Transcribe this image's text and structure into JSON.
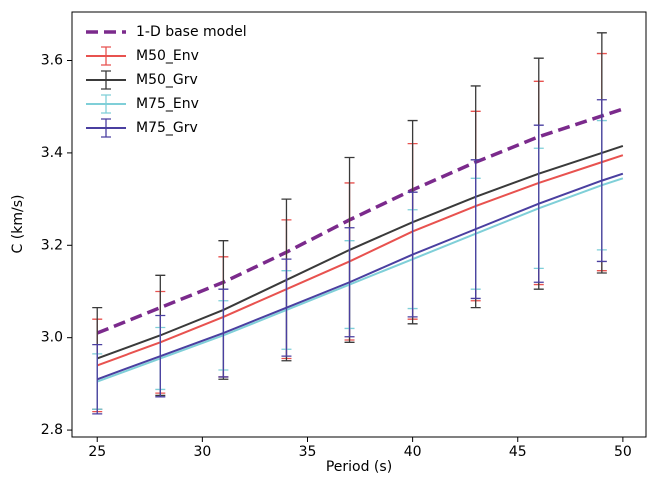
{
  "chart_data": {
    "type": "line",
    "x_label": "Period (s)",
    "y_label": "C (km/s)",
    "x": [
      25,
      28,
      31,
      34,
      37,
      40,
      43,
      46,
      49,
      50
    ],
    "xlim": [
      23.8,
      51.1
    ],
    "xticks": [
      25,
      30,
      35,
      40,
      45,
      50
    ],
    "ylim": [
      2.785,
      3.705
    ],
    "yticks": [
      2.8,
      {
        "value": 3,
        "label": "3.0"
      },
      3.2,
      3.4,
      3.6
    ],
    "grid": false,
    "legend": "upper left",
    "series": [
      {
        "name": "1-D base model",
        "color": "#7b2a8c",
        "dashed": true,
        "values": [
          3.01,
          3.065,
          3.12,
          3.185,
          3.255,
          3.32,
          3.38,
          3.435,
          3.48,
          3.495
        ]
      },
      {
        "name": "M50_Env",
        "color": "#e8524f",
        "values": [
          2.94,
          2.99,
          3.045,
          3.105,
          3.165,
          3.23,
          3.285,
          3.335,
          3.38,
          3.395
        ],
        "errors": [
          0.1,
          0.11,
          0.13,
          0.15,
          0.17,
          0.19,
          0.205,
          0.22,
          0.235,
          null
        ]
      },
      {
        "name": "M50_Grv",
        "color": "#3a3a3a",
        "values": [
          2.955,
          3.005,
          3.06,
          3.125,
          3.19,
          3.25,
          3.305,
          3.355,
          3.4,
          3.415
        ],
        "errors": [
          0.11,
          0.13,
          0.15,
          0.175,
          0.2,
          0.22,
          0.24,
          0.25,
          0.26,
          null
        ]
      },
      {
        "name": "M75_Env",
        "color": "#7fcfd8",
        "values": [
          2.905,
          2.955,
          3.005,
          3.06,
          3.115,
          3.17,
          3.225,
          3.28,
          3.33,
          3.345
        ],
        "errors": [
          0.06,
          0.067,
          0.075,
          0.085,
          0.095,
          0.107,
          0.12,
          0.13,
          0.14,
          null
        ]
      },
      {
        "name": "M75_Grv",
        "color": "#4a3fa0",
        "values": [
          2.91,
          2.96,
          3.01,
          3.065,
          3.12,
          3.18,
          3.235,
          3.29,
          3.34,
          3.355
        ],
        "errors": [
          0.075,
          0.088,
          0.095,
          0.105,
          0.118,
          0.135,
          0.15,
          0.17,
          0.175,
          null
        ]
      }
    ]
  }
}
